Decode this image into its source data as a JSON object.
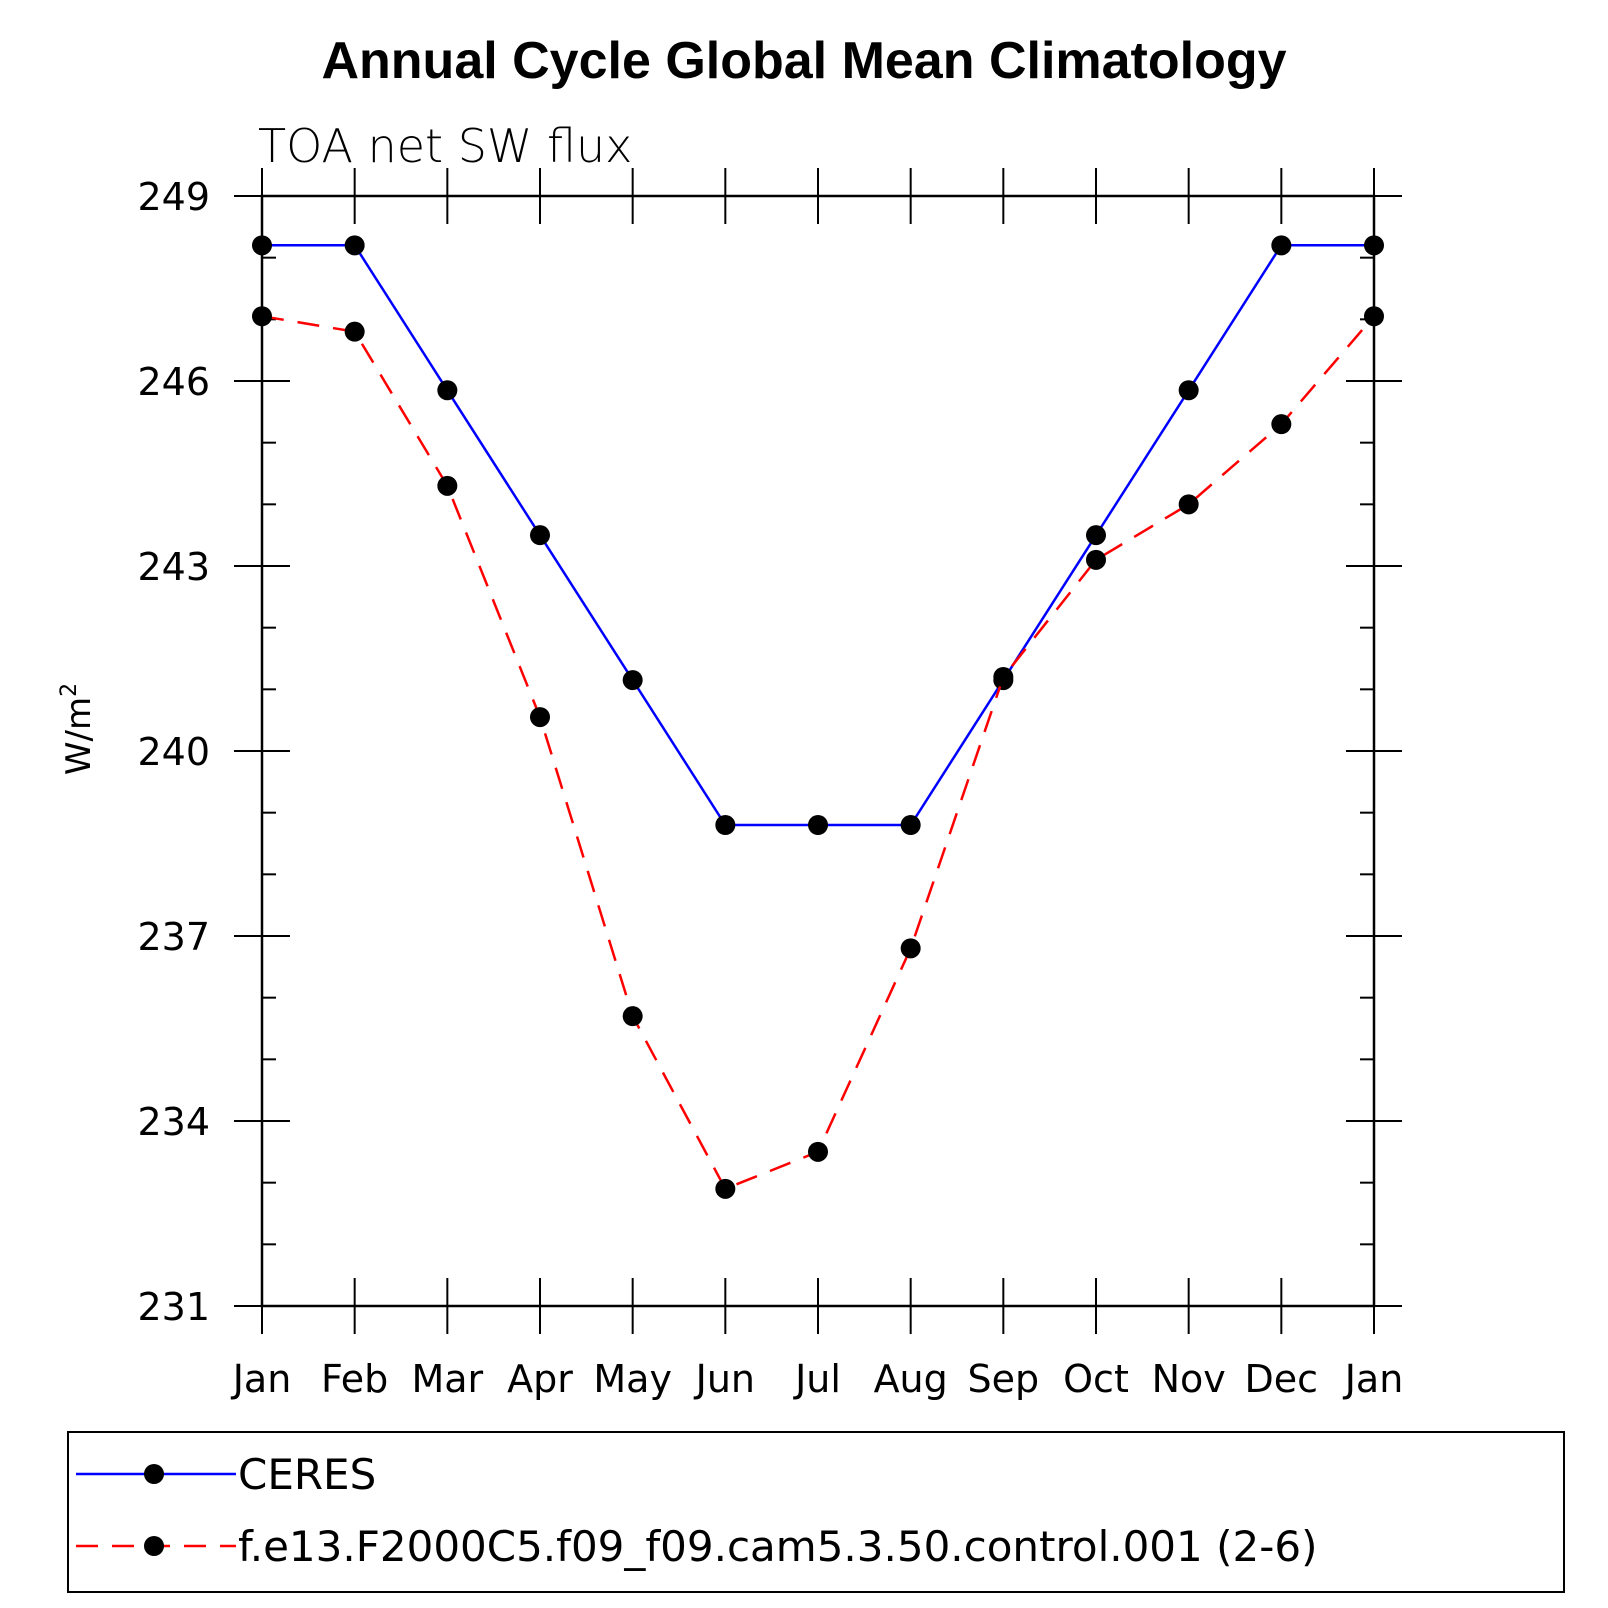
{
  "chart_data": {
    "type": "line",
    "title": "Annual Cycle Global Mean Climatology",
    "subtitle": "TOA net SW flux",
    "xlabel": "",
    "ylabel": "W/m",
    "ylabel_superscript": "2",
    "categories": [
      "Jan",
      "Feb",
      "Mar",
      "Apr",
      "May",
      "Jun",
      "Jul",
      "Aug",
      "Sep",
      "Oct",
      "Nov",
      "Dec",
      "Jan"
    ],
    "ylim": [
      231,
      249
    ],
    "yticks": [
      231,
      234,
      237,
      240,
      243,
      246,
      249
    ],
    "grid": false,
    "legend_position": "bottom",
    "series": [
      {
        "name": "CERES",
        "color": "#0000ff",
        "dash": "solid",
        "marker": "circle",
        "values": [
          248.2,
          248.2,
          245.85,
          243.5,
          241.15,
          238.8,
          238.8,
          238.8,
          241.15,
          243.5,
          245.85,
          248.2,
          248.2
        ]
      },
      {
        "name": "f.e13.F2000C5.f09_f09.cam5.3.50.control.001 (2-6)",
        "color": "#ff0000",
        "dash": "dashed",
        "marker": "circle",
        "values": [
          247.05,
          246.8,
          244.3,
          240.55,
          235.7,
          232.9,
          233.5,
          236.8,
          241.2,
          243.1,
          244.0,
          245.3,
          247.05
        ]
      }
    ]
  }
}
